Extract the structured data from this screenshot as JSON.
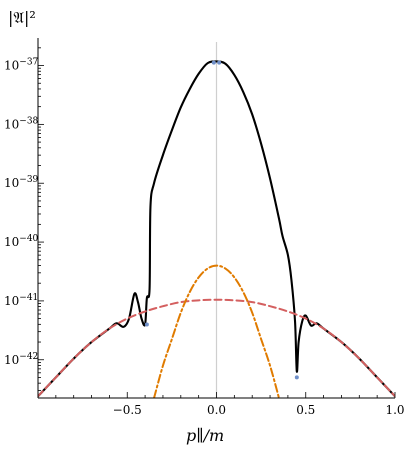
{
  "chart_data": {
    "type": "line",
    "ylabel": "|𝔄|²",
    "xlabel": "p∥/m",
    "xlim": [
      -1.0,
      1.0
    ],
    "ylog": true,
    "ylim_exp": [
      -42.65,
      -36.6
    ],
    "x_ticks": [
      {
        "value": -0.5,
        "label": "−0.5"
      },
      {
        "value": 0.0,
        "label": "0.0"
      },
      {
        "value": 0.5,
        "label": "0.5"
      },
      {
        "value": 1.0,
        "label": "1.0"
      }
    ],
    "y_ticks": [
      {
        "exp": -37,
        "label_base": "10",
        "label_exp": "−37"
      },
      {
        "exp": -38,
        "label_base": "10",
        "label_exp": "−38"
      },
      {
        "exp": -39,
        "label_base": "10",
        "label_exp": "−39"
      },
      {
        "exp": -40,
        "label_base": "10",
        "label_exp": "−40"
      },
      {
        "exp": -41,
        "label_base": "10",
        "label_exp": "−41"
      },
      {
        "exp": -42,
        "label_base": "10",
        "label_exp": "−42"
      }
    ],
    "grid": false,
    "vertical_reference_line_x": 0.0,
    "series": [
      {
        "style": "solid",
        "color": "#000000",
        "x": [
          -1.0,
          -0.9,
          -0.8,
          -0.7,
          -0.6,
          -0.56,
          -0.52,
          -0.49,
          -0.46,
          -0.44,
          -0.42,
          -0.4,
          -0.39,
          -0.375,
          -0.37,
          -0.35,
          -0.3,
          -0.25,
          -0.2,
          -0.15,
          -0.1,
          -0.05,
          0.0,
          0.05,
          0.1,
          0.15,
          0.2,
          0.25,
          0.3,
          0.35,
          0.37,
          0.4,
          0.42,
          0.44,
          0.45,
          0.46,
          0.48,
          0.5,
          0.53,
          0.56,
          0.6,
          0.7,
          0.8,
          0.9,
          1.0
        ],
        "y_exp": [
          -42.62,
          -42.3,
          -41.98,
          -41.7,
          -41.47,
          -41.38,
          -41.44,
          -41.3,
          -40.88,
          -41.02,
          -41.3,
          -41.4,
          -40.95,
          -40.8,
          -39.4,
          -39.0,
          -38.52,
          -38.1,
          -37.71,
          -37.4,
          -37.14,
          -36.96,
          -36.93,
          -36.97,
          -37.16,
          -37.45,
          -37.83,
          -38.33,
          -38.92,
          -39.6,
          -39.9,
          -40.22,
          -40.65,
          -41.35,
          -42.2,
          -41.7,
          -41.35,
          -41.25,
          -41.42,
          -41.38,
          -41.47,
          -41.7,
          -41.98,
          -42.3,
          -42.62
        ]
      },
      {
        "style": "dashed",
        "color": "#d45f5f",
        "x": [
          -1.0,
          -0.9,
          -0.8,
          -0.7,
          -0.6,
          -0.5,
          -0.4,
          -0.3,
          -0.2,
          -0.1,
          0.0,
          0.1,
          0.2,
          0.3,
          0.4,
          0.5,
          0.6,
          0.7,
          0.8,
          0.9,
          1.0
        ],
        "y_exp": [
          -42.62,
          -42.3,
          -41.98,
          -41.7,
          -41.47,
          -41.3,
          -41.18,
          -41.09,
          -41.02,
          -40.99,
          -40.98,
          -40.99,
          -41.02,
          -41.09,
          -41.18,
          -41.3,
          -41.47,
          -41.7,
          -41.98,
          -42.3,
          -42.62
        ]
      },
      {
        "style": "dash-dot",
        "color": "#e07b00",
        "x": [
          -0.35,
          -0.3,
          -0.25,
          -0.2,
          -0.15,
          -0.1,
          -0.05,
          0.0,
          0.05,
          0.1,
          0.15,
          0.2,
          0.25,
          0.3,
          0.35
        ],
        "y_exp": [
          -42.65,
          -42.1,
          -41.65,
          -41.2,
          -40.85,
          -40.6,
          -40.45,
          -40.4,
          -40.45,
          -40.6,
          -40.85,
          -41.2,
          -41.65,
          -42.1,
          -42.65
        ]
      },
      {
        "style": "markers",
        "color": "#6f8fc8",
        "x": [
          -0.39,
          0.45,
          -0.015,
          0.015
        ],
        "y_exp": [
          -41.4,
          -42.3,
          -36.95,
          -36.95
        ]
      }
    ]
  }
}
